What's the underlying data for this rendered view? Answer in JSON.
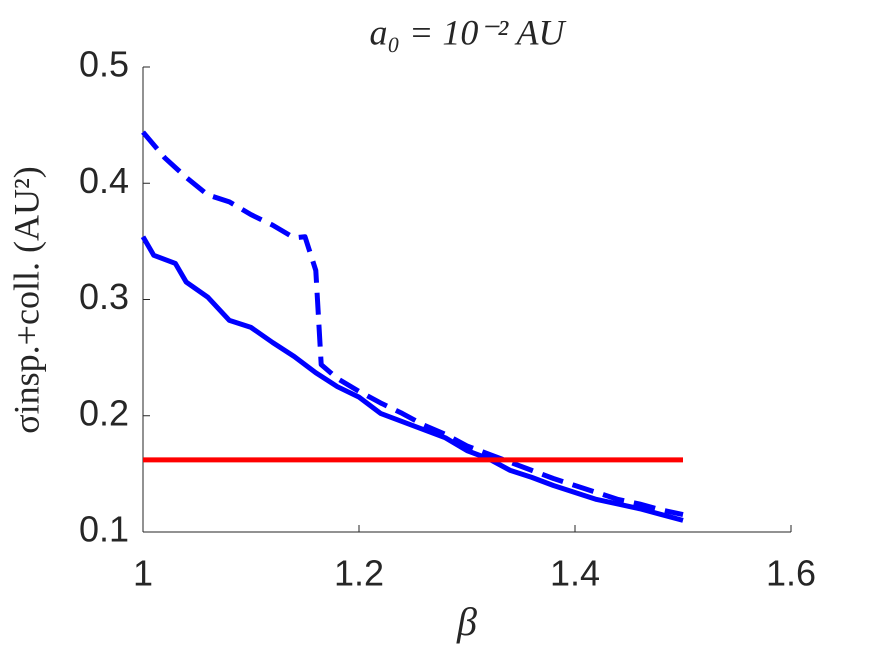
{
  "chart_data": {
    "type": "line",
    "title": "a₀ = 10⁻² AU",
    "x_label": "β",
    "y_label": "σinsp.+coll. (AU²)",
    "xlim": [
      1,
      1.6
    ],
    "xticks": [
      1,
      1.2,
      1.4,
      1.6
    ],
    "ylim": [
      0.1,
      0.5
    ],
    "yticks": [
      0.1,
      0.2,
      0.3,
      0.4,
      0.5
    ],
    "grid": false,
    "series": [
      {
        "color": "#0000ff",
        "dash": false,
        "x": [
          1.0,
          1.01,
          1.03,
          1.04,
          1.06,
          1.08,
          1.1,
          1.12,
          1.14,
          1.16,
          1.18,
          1.2,
          1.22,
          1.24,
          1.26,
          1.28,
          1.3,
          1.32,
          1.34,
          1.36,
          1.38,
          1.4,
          1.42,
          1.44,
          1.46,
          1.48,
          1.5
        ],
        "values": [
          0.354,
          0.338,
          0.331,
          0.315,
          0.302,
          0.282,
          0.276,
          0.263,
          0.251,
          0.237,
          0.225,
          0.216,
          0.202,
          0.195,
          0.188,
          0.181,
          0.17,
          0.163,
          0.153,
          0.147,
          0.14,
          0.134,
          0.128,
          0.124,
          0.12,
          0.115,
          0.11
        ]
      },
      {
        "color": "#0000ff",
        "dash": true,
        "x": [
          1.0,
          1.02,
          1.04,
          1.06,
          1.08,
          1.1,
          1.12,
          1.14,
          1.15,
          1.16,
          1.165,
          1.18,
          1.2,
          1.22,
          1.24,
          1.26,
          1.28,
          1.3,
          1.32,
          1.34,
          1.36,
          1.38,
          1.4,
          1.42,
          1.44,
          1.46,
          1.48,
          1.5
        ],
        "values": [
          0.444,
          0.422,
          0.405,
          0.39,
          0.384,
          0.373,
          0.364,
          0.353,
          0.354,
          0.325,
          0.244,
          0.232,
          0.221,
          0.211,
          0.202,
          0.192,
          0.184,
          0.174,
          0.167,
          0.16,
          0.153,
          0.146,
          0.14,
          0.134,
          0.128,
          0.124,
          0.119,
          0.115
        ]
      },
      {
        "color": "#ff0000",
        "dash": false,
        "x": [
          1.0,
          1.5
        ],
        "values": [
          0.162,
          0.162
        ]
      }
    ]
  }
}
